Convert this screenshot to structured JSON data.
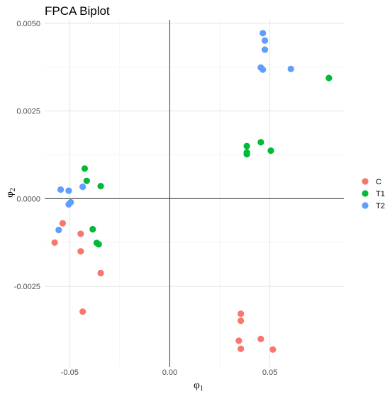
{
  "chart_data": {
    "type": "scatter",
    "title": "FPCA Biplot",
    "xlabel": {
      "base": "φ",
      "sub": "1"
    },
    "ylabel": {
      "base": "φ",
      "sub": "2"
    },
    "xlim": [
      -0.0625,
      0.087
    ],
    "ylim": [
      -0.0048,
      0.0051
    ],
    "x_ticks": [
      -0.05,
      0,
      0.05
    ],
    "x_tick_labels": [
      "-0.05",
      "0.00",
      "0.05"
    ],
    "y_ticks": [
      -0.0025,
      0,
      0.0025,
      0.005
    ],
    "y_tick_labels": [
      "-0.0025",
      "0.0000",
      "0.0025",
      "0.0050"
    ],
    "grid": true,
    "reference_lines": {
      "x": 0,
      "y": 0
    },
    "legend_position": "right",
    "series": [
      {
        "name": "C",
        "color": "#F8766D",
        "points": [
          [
            -0.0575,
            -0.00125
          ],
          [
            -0.0535,
            -0.0007
          ],
          [
            -0.0445,
            -0.001
          ],
          [
            -0.0445,
            -0.0015
          ],
          [
            -0.0345,
            -0.00212
          ],
          [
            -0.0435,
            -0.00322
          ],
          [
            0.0355,
            -0.00328
          ],
          [
            0.0355,
            -0.00348
          ],
          [
            0.0345,
            -0.00405
          ],
          [
            0.0355,
            -0.00428
          ],
          [
            0.0455,
            -0.004
          ],
          [
            0.0515,
            -0.0043
          ]
        ]
      },
      {
        "name": "T1",
        "color": "#00BA38",
        "points": [
          [
            -0.0425,
            0.00086
          ],
          [
            -0.0415,
            0.00051
          ],
          [
            -0.0345,
            0.00036
          ],
          [
            -0.0385,
            -0.00087
          ],
          [
            -0.0365,
            -0.00126
          ],
          [
            -0.0355,
            -0.0013
          ],
          [
            0.0385,
            0.0015
          ],
          [
            0.0385,
            0.00132
          ],
          [
            0.0385,
            0.00127
          ],
          [
            0.0455,
            0.00161
          ],
          [
            0.0505,
            0.00137
          ],
          [
            0.0795,
            0.00344
          ]
        ]
      },
      {
        "name": "T2",
        "color": "#619CFF",
        "points": [
          [
            -0.0545,
            0.00026
          ],
          [
            -0.0505,
            0.00023
          ],
          [
            -0.0435,
            0.00034
          ],
          [
            -0.0505,
            -0.00016
          ],
          [
            -0.0495,
            -0.0001
          ],
          [
            -0.0555,
            -0.00089
          ],
          [
            0.0465,
            0.00472
          ],
          [
            0.0475,
            0.00451
          ],
          [
            0.0475,
            0.00425
          ],
          [
            0.0455,
            0.00374
          ],
          [
            0.0465,
            0.00368
          ],
          [
            0.0605,
            0.0037
          ]
        ]
      }
    ]
  }
}
